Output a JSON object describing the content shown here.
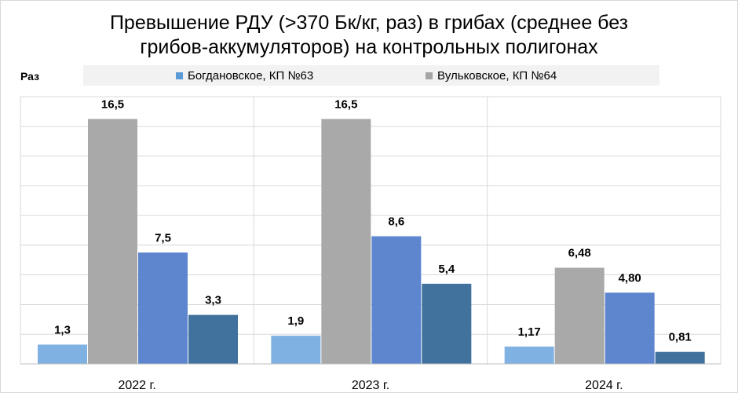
{
  "chart_data": {
    "type": "bar",
    "title_line1": "Превышение РДУ (>370 Бк/кг, раз) в грибах (среднее без",
    "title_line2": "грибов-аккумуляторов) на контрольных полигонах",
    "ylabel": "Раз",
    "categories": [
      "2022 г.",
      "2023 г.",
      "2024 г."
    ],
    "ylim": [
      0,
      18
    ],
    "grid": true,
    "legend_position": "top",
    "legend": [
      {
        "name": "Богдановское, КП №63",
        "color": "#5b9bd5"
      },
      {
        "name": "Вульковское, КП №64",
        "color": "#a5a5a5"
      }
    ],
    "series": [
      {
        "color": "#7fb1e3",
        "values": [
          1.3,
          1.9,
          1.17
        ],
        "labels": [
          "1,3",
          "1,9",
          "1,17"
        ]
      },
      {
        "color": "#a9a9a9",
        "values": [
          16.5,
          16.5,
          6.48
        ],
        "labels": [
          "16,5",
          "16,5",
          "6,48"
        ]
      },
      {
        "color": "#5e86cf",
        "values": [
          7.5,
          8.6,
          4.8
        ],
        "labels": [
          "7,5",
          "8,6",
          "4,80"
        ]
      },
      {
        "color": "#41729e",
        "values": [
          3.3,
          5.4,
          0.81
        ],
        "labels": [
          "3,3",
          "5,4",
          "0,81"
        ]
      }
    ]
  }
}
